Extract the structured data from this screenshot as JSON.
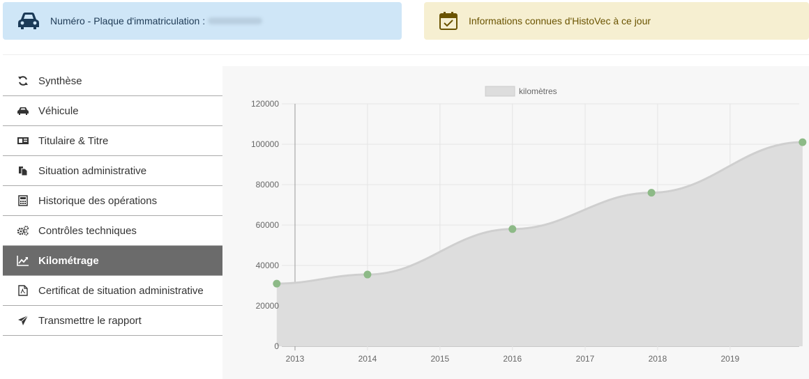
{
  "banners": {
    "plate_label": "Numéro - Plaque d'immatriculation :",
    "info_label": "Informations connues d'HistoVec à ce jour"
  },
  "colors": {
    "plate_banner_bg": "#cfe6f7",
    "info_banner_bg": "#f6efd1",
    "active_nav_bg": "#6b6b6b",
    "point_color": "#8dba87",
    "area_fill": "#dddddd",
    "line_color": "#cfcfcf"
  },
  "sidebar": {
    "items": [
      {
        "label": "Synthèse",
        "icon": "refresh-icon"
      },
      {
        "label": "Véhicule",
        "icon": "car-icon"
      },
      {
        "label": "Titulaire & Titre",
        "icon": "id-card-icon"
      },
      {
        "label": "Situation administrative",
        "icon": "copy-icon"
      },
      {
        "label": "Historique des opérations",
        "icon": "calculator-icon"
      },
      {
        "label": "Contrôles techniques",
        "icon": "gears-icon"
      },
      {
        "label": "Kilométrage",
        "icon": "line-chart-icon",
        "active": true
      },
      {
        "label": "Certificat de situation administrative",
        "icon": "pdf-file-icon"
      },
      {
        "label": "Transmettre le rapport",
        "icon": "send-icon"
      }
    ]
  },
  "chart_data": {
    "type": "area",
    "series": [
      {
        "name": "kilomètres",
        "points": [
          {
            "x": "2012-10-01",
            "y": 31000
          },
          {
            "x": "2014-01-01",
            "y": 35500
          },
          {
            "x": "2016-01-01",
            "y": 58000
          },
          {
            "x": "2017-12-01",
            "y": 76000
          },
          {
            "x": "2020-01-01",
            "y": 101000
          }
        ]
      }
    ],
    "x_ticks": [
      "2013",
      "2014",
      "2015",
      "2016",
      "2017",
      "2018",
      "2019"
    ],
    "y_ticks": [
      "0",
      "20000",
      "40000",
      "60000",
      "80000",
      "100000",
      "120000"
    ],
    "ylim": [
      0,
      120000
    ],
    "grid": true,
    "legend_position": "top"
  }
}
